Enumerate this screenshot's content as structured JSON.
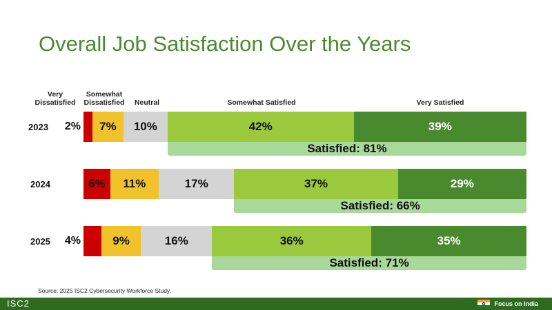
{
  "title": "Overall Job Satisfaction Over the Years",
  "source": "Source: 2025 ISC2 Cybersecurity Workforce Study.",
  "footer": {
    "logo": "ISC2",
    "focus": "Focus on India",
    "flag_icon": "india-flag-icon"
  },
  "chart_data": {
    "type": "bar",
    "orientation": "horizontal",
    "stacked": true,
    "title": "Overall Job Satisfaction Over the Years",
    "categories": [
      "2023",
      "2024",
      "2025"
    ],
    "series": [
      {
        "name": "Very Dissatisfied",
        "values": [
          2,
          6,
          4
        ],
        "labels": [
          "2%",
          "6%",
          "4%"
        ],
        "color": "#cc0000"
      },
      {
        "name": "Somewhat Dissatisfied",
        "values": [
          7,
          11,
          9
        ],
        "labels": [
          "7%",
          "11%",
          "9%"
        ],
        "color": "#f2c22c"
      },
      {
        "name": "Neutral",
        "values": [
          10,
          17,
          16
        ],
        "labels": [
          "10%",
          "17%",
          "16%"
        ],
        "color": "#d4d4d4"
      },
      {
        "name": "Somewhat Satisfied",
        "values": [
          42,
          37,
          36
        ],
        "labels": [
          "42%",
          "37%",
          "36%"
        ],
        "color": "#9bc93e"
      },
      {
        "name": "Very Satisfied",
        "values": [
          39,
          29,
          35
        ],
        "labels": [
          "39%",
          "29%",
          "35%"
        ],
        "color": "#4a8a2e"
      }
    ],
    "satisfied": {
      "values": [
        81,
        66,
        71
      ],
      "labels": [
        "Satisfied: 81%",
        "Satisfied: 66%",
        "Satisfied: 71%"
      ],
      "color": "#a9d99a"
    },
    "headers": {
      "very_dissatisfied": [
        "Very",
        "Dissatisfied"
      ],
      "somewhat_dissatisfied": [
        "Somewhat",
        "Dissatisfied"
      ],
      "neutral": "Neutral",
      "somewhat_satisfied": "Somewhat Satisfied",
      "very_satisfied": "Very Satisfied"
    },
    "xlim": [
      0,
      100
    ],
    "legend": "none",
    "grid": false
  }
}
